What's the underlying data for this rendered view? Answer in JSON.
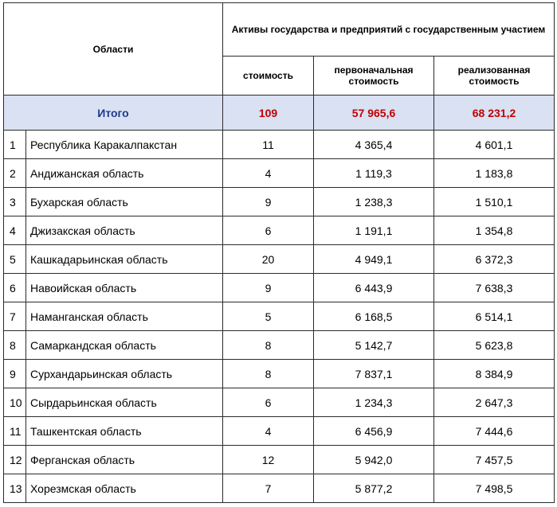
{
  "header": {
    "regions_label": "Области",
    "group_label": "Активы государства и предприятий с государственным участием",
    "col_count": "стоимость",
    "col_initial": "первоначальная стоимость",
    "col_realized": "реализованная стоимость"
  },
  "total": {
    "label": "Итого",
    "count": "109",
    "initial": "57 965,6",
    "realized": "68 231,2"
  },
  "rows": [
    {
      "idx": "1",
      "name": "Республика Каракалпакстан",
      "count": "11",
      "initial": "4 365,4",
      "realized": "4 601,1"
    },
    {
      "idx": "2",
      "name": "Андижанская область",
      "count": "4",
      "initial": "1 119,3",
      "realized": "1 183,8"
    },
    {
      "idx": "3",
      "name": "Бухарская область",
      "count": "9",
      "initial": "1 238,3",
      "realized": "1 510,1"
    },
    {
      "idx": "4",
      "name": "Джизакская область",
      "count": "6",
      "initial": "1 191,1",
      "realized": "1 354,8"
    },
    {
      "idx": "5",
      "name": "Кашкадарьинская область",
      "count": "20",
      "initial": "4 949,1",
      "realized": "6 372,3"
    },
    {
      "idx": "6",
      "name": "Навоийская область",
      "count": "9",
      "initial": "6 443,9",
      "realized": "7 638,3"
    },
    {
      "idx": "7",
      "name": "Наманганская область",
      "count": "5",
      "initial": "6 168,5",
      "realized": "6 514,1"
    },
    {
      "idx": "8",
      "name": "Самаркандская область",
      "count": "8",
      "initial": "5 142,7",
      "realized": "5 623,8"
    },
    {
      "idx": "9",
      "name": "Сурхандарьинская область",
      "count": "8",
      "initial": "7 837,1",
      "realized": "8 384,9"
    },
    {
      "idx": "10",
      "name": "Сырдарьинская область",
      "count": "6",
      "initial": "1 234,3",
      "realized": "2 647,3"
    },
    {
      "idx": "11",
      "name": "Ташкентская область",
      "count": "4",
      "initial": "6 456,9",
      "realized": "7 444,6"
    },
    {
      "idx": "12",
      "name": "Ферганская область",
      "count": "12",
      "initial": "5 942,0",
      "realized": "7 457,5"
    },
    {
      "idx": "13",
      "name": "Хорезмская область",
      "count": "7",
      "initial": "5 877,2",
      "realized": "7 498,5"
    }
  ]
}
